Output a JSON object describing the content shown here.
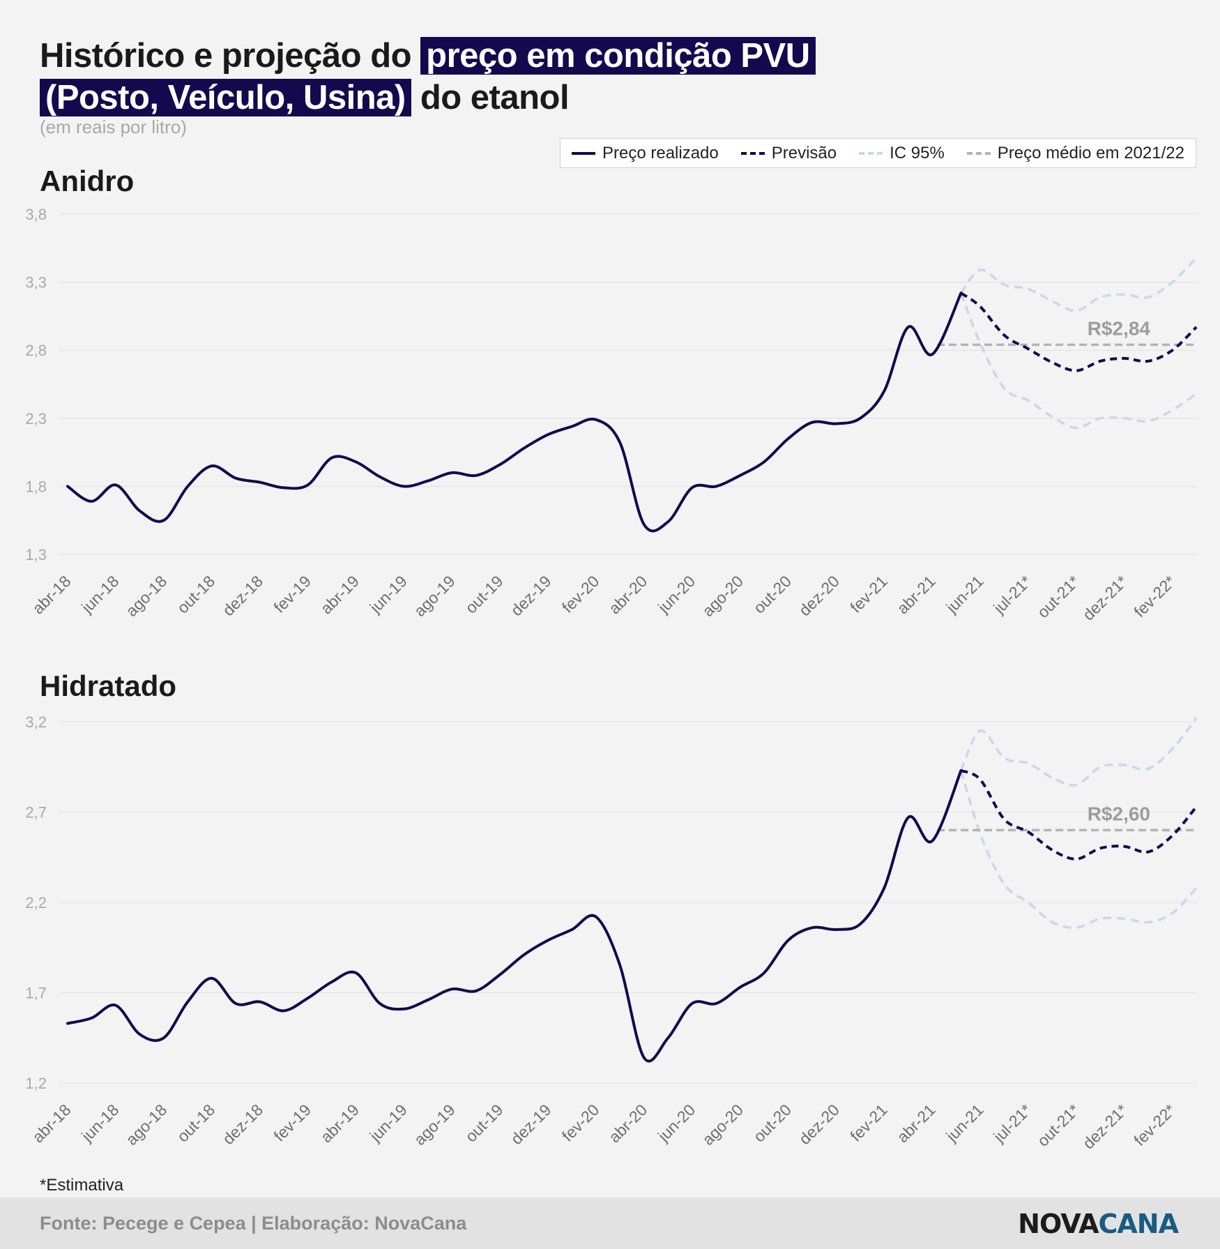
{
  "title": {
    "part1": "Histórico e projeção do ",
    "hl1": "preço em condição PVU",
    "hl2": "(Posto, Veículo, Usina)",
    "part2": " do etanol"
  },
  "subtitle": "(em reais por litro)",
  "legend": {
    "realizado": "Preço realizado",
    "previsao": "Previsão",
    "ic": "IC 95%",
    "media": "Preço médio em 2021/22"
  },
  "colors": {
    "realizado": "#14094e",
    "previsao": "#14094e",
    "ic": "#c5d9ea",
    "media": "#b3b3b3",
    "grid": "#e0e0e0",
    "tick": "#a8a8a8",
    "axis": "#6e6e6e"
  },
  "footnote": "*Estimativa",
  "footer": {
    "source": "Fonte: Pecege e Cepea  | Elaboração: NovaCana",
    "logo_a": "NOVA",
    "logo_b": "CANA"
  },
  "chart_data": [
    {
      "type": "line",
      "title": "Anidro",
      "x_labels": [
        "abr-18",
        "jun-18",
        "ago-18",
        "out-18",
        "dez-18",
        "fev-19",
        "abr-19",
        "jun-19",
        "ago-19",
        "out-19",
        "dez-19",
        "fev-20",
        "abr-20",
        "jun-20",
        "ago-20",
        "out-20",
        "dez-20",
        "fev-21",
        "abr-21",
        "jun-21",
        "jul-21*",
        "out-21*",
        "dez-21*",
        "fev-22*"
      ],
      "y_ticks": [
        "1,3",
        "1,8",
        "2,3",
        "2,8",
        "3,3",
        "3,8"
      ],
      "ylim": [
        1.3,
        3.8
      ],
      "realized": {
        "x": [
          0,
          0.5,
          1,
          1.5,
          2,
          2.5,
          3,
          3.5,
          4,
          4.5,
          5,
          5.5,
          6,
          6.5,
          7,
          7.5,
          8,
          8.5,
          9,
          9.5,
          10,
          10.5,
          11,
          11.5,
          12,
          12.5,
          13,
          13.5,
          14,
          14.5,
          15,
          15.5,
          16,
          16.5,
          17,
          17.5,
          18,
          18.6
        ],
        "y": [
          1.8,
          1.69,
          1.81,
          1.62,
          1.55,
          1.8,
          1.95,
          1.86,
          1.83,
          1.79,
          1.81,
          2.01,
          1.98,
          1.87,
          1.8,
          1.84,
          1.9,
          1.88,
          1.96,
          2.08,
          2.18,
          2.24,
          2.29,
          2.12,
          1.52,
          1.54,
          1.79,
          1.8,
          1.88,
          1.98,
          2.15,
          2.27,
          2.26,
          2.3,
          2.5,
          2.97,
          2.77,
          3.22
        ]
      },
      "forecast": {
        "x": [
          18.6,
          19,
          19.5,
          20,
          20.5,
          21,
          21.5,
          22,
          22.5,
          23,
          23.5
        ],
        "y": [
          3.22,
          3.12,
          2.91,
          2.81,
          2.71,
          2.65,
          2.72,
          2.74,
          2.72,
          2.8,
          2.97
        ]
      },
      "ci_upper": {
        "x": [
          18.6,
          19,
          19.5,
          20,
          20.5,
          21,
          21.5,
          22,
          22.5,
          23,
          23.5
        ],
        "y": [
          3.22,
          3.39,
          3.28,
          3.25,
          3.16,
          3.09,
          3.19,
          3.21,
          3.19,
          3.3,
          3.48
        ]
      },
      "ci_lower": {
        "x": [
          18.6,
          19,
          19.5,
          20,
          20.5,
          21,
          21.5,
          22,
          22.5,
          23,
          23.5
        ],
        "y": [
          3.22,
          2.85,
          2.52,
          2.43,
          2.31,
          2.23,
          2.3,
          2.3,
          2.28,
          2.36,
          2.48
        ]
      },
      "mean": {
        "value": 2.84,
        "label": "R$2,84",
        "x_start": 18.1,
        "x_end": 23.5
      }
    },
    {
      "type": "line",
      "title": "Hidratado",
      "x_labels": [
        "abr-18",
        "jun-18",
        "ago-18",
        "out-18",
        "dez-18",
        "fev-19",
        "abr-19",
        "jun-19",
        "ago-19",
        "out-19",
        "dez-19",
        "fev-20",
        "abr-20",
        "jun-20",
        "ago-20",
        "out-20",
        "dez-20",
        "fev-21",
        "abr-21",
        "jun-21",
        "jul-21*",
        "out-21*",
        "dez-21*",
        "fev-22*"
      ],
      "y_ticks": [
        "1,2",
        "1,7",
        "2,2",
        "2,7",
        "3,2"
      ],
      "ylim": [
        1.2,
        3.2
      ],
      "realized": {
        "x": [
          0,
          0.5,
          1,
          1.5,
          2,
          2.5,
          3,
          3.5,
          4,
          4.5,
          5,
          5.5,
          6,
          6.5,
          7,
          7.5,
          8,
          8.5,
          9,
          9.5,
          10,
          10.5,
          11,
          11.5,
          12,
          12.5,
          13,
          13.5,
          14,
          14.5,
          15,
          15.5,
          16,
          16.5,
          17,
          17.5,
          18,
          18.6
        ],
        "y": [
          1.53,
          1.56,
          1.63,
          1.47,
          1.45,
          1.65,
          1.78,
          1.64,
          1.65,
          1.6,
          1.67,
          1.76,
          1.81,
          1.64,
          1.61,
          1.66,
          1.72,
          1.71,
          1.8,
          1.91,
          1.99,
          2.05,
          2.12,
          1.85,
          1.34,
          1.45,
          1.64,
          1.64,
          1.73,
          1.81,
          1.99,
          2.06,
          2.05,
          2.08,
          2.28,
          2.67,
          2.54,
          2.93
        ]
      },
      "forecast": {
        "x": [
          18.6,
          19,
          19.5,
          20,
          20.5,
          21,
          21.5,
          22,
          22.5,
          23,
          23.5
        ],
        "y": [
          2.93,
          2.88,
          2.66,
          2.59,
          2.49,
          2.44,
          2.5,
          2.51,
          2.48,
          2.57,
          2.73
        ]
      },
      "ci_upper": {
        "x": [
          18.6,
          19,
          19.5,
          20,
          20.5,
          21,
          21.5,
          22,
          22.5,
          23,
          23.5
        ],
        "y": [
          2.93,
          3.15,
          3.0,
          2.97,
          2.89,
          2.85,
          2.95,
          2.96,
          2.94,
          3.05,
          3.22
        ]
      },
      "ci_lower": {
        "x": [
          18.6,
          19,
          19.5,
          20,
          20.5,
          21,
          21.5,
          22,
          22.5,
          23,
          23.5
        ],
        "y": [
          2.93,
          2.58,
          2.3,
          2.2,
          2.09,
          2.06,
          2.11,
          2.11,
          2.09,
          2.14,
          2.28
        ]
      },
      "mean": {
        "value": 2.6,
        "label": "R$2,60",
        "x_start": 18.1,
        "x_end": 23.5
      }
    }
  ]
}
